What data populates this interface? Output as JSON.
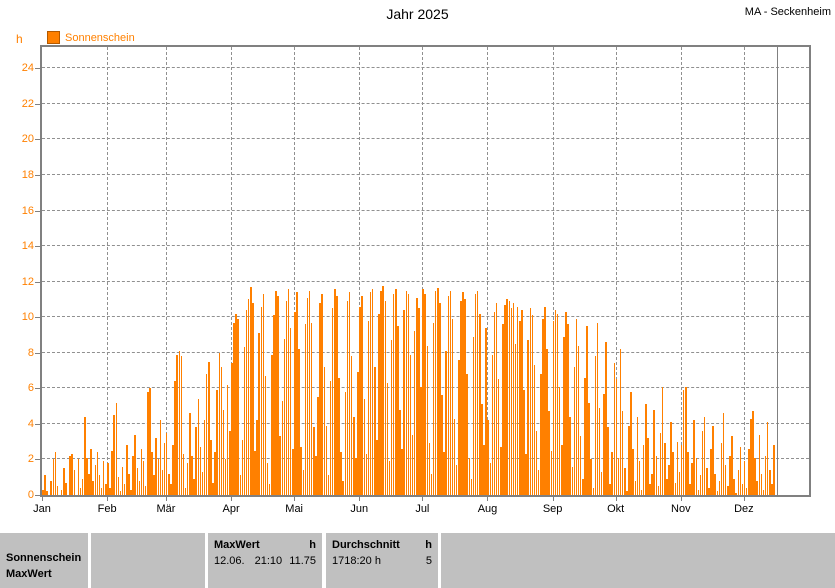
{
  "header": {
    "title": "Jahr 2025",
    "station": "MA - Seckenheim"
  },
  "legend": {
    "label": "Sonnenschein"
  },
  "axes": {
    "y_unit": "h"
  },
  "colors": {
    "accent": "#ff8000",
    "legend_border": "#b35900",
    "axis_gray": "#808080",
    "grid_gray": "#909090",
    "table_gray": "#c0c0c0",
    "text": "#000000"
  },
  "chart_data": {
    "type": "bar",
    "title": "Jahr 2025",
    "series_name": "Sonnenschein",
    "ylabel": "h",
    "xlabel": "",
    "grid": true,
    "legend_position": "top-left",
    "ylim": [
      0,
      25.2
    ],
    "y_ticks": [
      0,
      2,
      4,
      6,
      8,
      10,
      12,
      14,
      16,
      18,
      20,
      22,
      24
    ],
    "x_range_days": 365,
    "cursor_day": 350,
    "months": [
      {
        "label": "Jan",
        "days": 31,
        "values": [
          0.3,
          1.1,
          0.2,
          0,
          0.8,
          2.0,
          2.4,
          0.5,
          0,
          0.3,
          1.5,
          0.7,
          0,
          2.2,
          2.3,
          1.4,
          0,
          2.0,
          0.4,
          0.9,
          4.4,
          2.1,
          1.2,
          2.6,
          0.8,
          1.7,
          2.4,
          1.1,
          0.4,
          1.9,
          0.6
        ]
      },
      {
        "label": "Feb",
        "days": 28,
        "values": [
          1.8,
          0.4,
          2.5,
          4.5,
          5.2,
          1.0,
          0.2,
          1.6,
          0.6,
          2.8,
          1.2,
          0.3,
          2.2,
          3.4,
          1.5,
          0.8,
          2.6,
          1.9,
          0.5,
          5.8,
          6.0,
          2.4,
          1.1,
          3.2,
          2.0,
          4.2,
          1.4,
          2.9
        ]
      },
      {
        "label": "Mär",
        "days": 31,
        "values": [
          3.5,
          1.2,
          0.6,
          2.8,
          6.4,
          7.9,
          8.1,
          7.8,
          2.3,
          0.4,
          1.8,
          4.6,
          2.2,
          0.9,
          3.8,
          5.4,
          2.7,
          1.3,
          4.2,
          6.8,
          7.5,
          3.1,
          0.7,
          2.4,
          5.9,
          8.0,
          7.2,
          4.8,
          2.0,
          6.2,
          3.6
        ]
      },
      {
        "label": "Apr",
        "days": 30,
        "values": [
          7.4,
          9.7,
          10.2,
          9.9,
          1.1,
          3.1,
          8.3,
          10.4,
          11.0,
          11.7,
          10.8,
          2.5,
          4.2,
          9.1,
          10.6,
          11.3,
          6.7,
          1.8,
          0.6,
          7.9,
          10.1,
          11.5,
          11.2,
          3.3,
          5.3,
          8.8,
          10.9,
          11.6,
          9.4,
          2.6
        ]
      },
      {
        "label": "Mai",
        "days": 31,
        "values": [
          10.3,
          11.4,
          8.2,
          2.7,
          1.4,
          9.6,
          11.1,
          11.5,
          9.7,
          3.8,
          2.2,
          5.5,
          10.8,
          11.3,
          7.2,
          3.9,
          1.1,
          6.4,
          10.5,
          11.6,
          11.2,
          6.6,
          2.4,
          0.8,
          5.8,
          10.9,
          11.4,
          7.8,
          4.4,
          2.1,
          6.9
        ]
      },
      {
        "label": "Jun",
        "days": 30,
        "values": [
          10.6,
          11.2,
          5.4,
          2.3,
          9.8,
          11.4,
          11.6,
          7.2,
          3.1,
          10.2,
          11.5,
          11.75,
          10.9,
          6.3,
          1.9,
          8.7,
          11.3,
          11.6,
          9.5,
          4.8,
          2.6,
          10.4,
          11.5,
          11.3,
          7.9,
          3.4,
          9.2,
          11.1,
          10.5,
          6.1
        ]
      },
      {
        "label": "Jul",
        "days": 31,
        "values": [
          11.6,
          11.3,
          8.4,
          2.9,
          1.2,
          9.7,
          11.5,
          11.65,
          10.8,
          5.6,
          2.4,
          8.1,
          11.2,
          11.5,
          9.9,
          4.3,
          1.7,
          7.6,
          10.9,
          11.4,
          11.0,
          6.8,
          2.1,
          0.9,
          8.9,
          11.3,
          11.5,
          10.2,
          5.1,
          2.8,
          9.4
        ]
      },
      {
        "label": "Aug",
        "days": 31,
        "values": [
          4.2,
          1.8,
          7.9,
          10.3,
          10.8,
          6.5,
          2.7,
          9.6,
          10.7,
          11.0,
          10.9,
          10.5,
          10.8,
          8.5,
          10.6,
          9.8,
          10.4,
          5.9,
          2.3,
          8.7,
          10.5,
          10.1,
          7.3,
          3.6,
          1.4,
          6.8,
          9.9,
          10.6,
          8.2,
          4.7,
          2.5
        ]
      },
      {
        "label": "Sep",
        "days": 30,
        "values": [
          9.8,
          10.4,
          10.2,
          6.1,
          2.8,
          8.9,
          10.3,
          9.6,
          4.4,
          1.6,
          7.2,
          9.9,
          8.4,
          3.3,
          0.9,
          6.6,
          9.5,
          5.2,
          2.0,
          0.4,
          7.8,
          9.7,
          4.9,
          1.3,
          5.7,
          8.6,
          3.8,
          0.6,
          2.4,
          7.4
        ]
      },
      {
        "label": "Okt",
        "days": 31,
        "values": [
          6.5,
          2.1,
          8.2,
          4.7,
          1.5,
          0.2,
          3.9,
          5.8,
          2.6,
          0.8,
          4.4,
          1.9,
          0.3,
          2.8,
          5.1,
          3.2,
          0.6,
          1.2,
          4.8,
          2.2,
          0.5,
          3.5,
          6.1,
          2.9,
          0.9,
          1.7,
          4.1,
          2.4,
          0.7,
          3.0,
          1.3
        ]
      },
      {
        "label": "Nov",
        "days": 30,
        "values": [
          2.8,
          5.9,
          6.1,
          2.4,
          0.6,
          1.8,
          4.2,
          2.1,
          0.3,
          1.1,
          3.6,
          4.4,
          1.5,
          0.4,
          2.6,
          3.9,
          1.2,
          0.2,
          0.8,
          2.9,
          4.6,
          1.7,
          0.5,
          2.2,
          3.3,
          0.9,
          0.1,
          1.4,
          2.7,
          0.6
        ]
      },
      {
        "label": "Dez",
        "days": 31,
        "values": [
          1.9,
          0.4,
          2.6,
          4.3,
          4.7,
          2.1,
          0.8,
          3.4,
          1.2,
          0.3,
          2.2,
          4.1,
          1.4,
          0.6,
          2.8
        ]
      }
    ]
  },
  "summary_table": {
    "row_label_1": "Sonnenschein",
    "row_label_2": "MaxWert",
    "max": {
      "header": "MaxWert",
      "unit_header": "h",
      "date": "12.06.",
      "time": "21:10",
      "value": "11.75"
    },
    "avg": {
      "header": "Durchschnitt",
      "unit_header": "h",
      "total": "1718:20 h",
      "value": "5"
    }
  }
}
